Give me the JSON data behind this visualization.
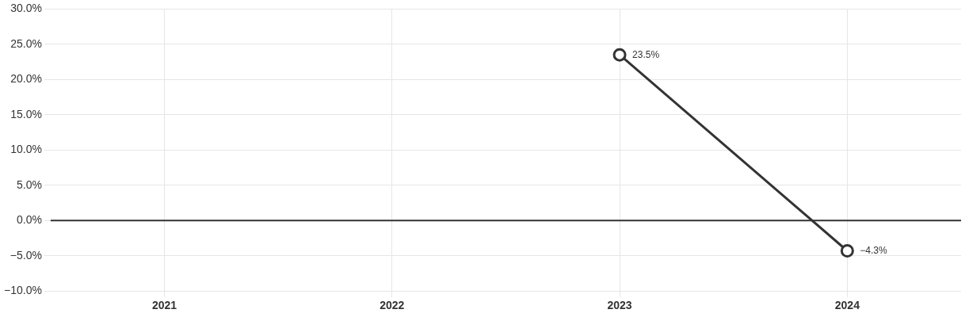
{
  "chart_data": {
    "type": "line",
    "categories": [
      "2021",
      "2022",
      "2023",
      "2024"
    ],
    "series": [
      {
        "color": "#333333",
        "values": [
          null,
          null,
          23.5,
          -4.3
        ],
        "value_labels": [
          null,
          null,
          "23.5%",
          "−4.3%"
        ]
      }
    ],
    "ylim": [
      -10,
      30
    ],
    "yticks": [
      {
        "value": -10,
        "label": "−10.0%"
      },
      {
        "value": -5,
        "label": "−5.0%"
      },
      {
        "value": 0,
        "label": "0.0%"
      },
      {
        "value": 5,
        "label": "5.0%"
      },
      {
        "value": 10,
        "label": "10.0%"
      },
      {
        "value": 15,
        "label": "15.0%"
      },
      {
        "value": 20,
        "label": "20.0%"
      },
      {
        "value": 25,
        "label": "25.0%"
      },
      {
        "value": 30,
        "label": "30.0%"
      }
    ],
    "ref_lines": [
      {
        "axis": "y",
        "value": 0,
        "color": "#333333"
      }
    ],
    "grid": true,
    "legend": false,
    "marker": "circle",
    "line_style": "solid"
  }
}
